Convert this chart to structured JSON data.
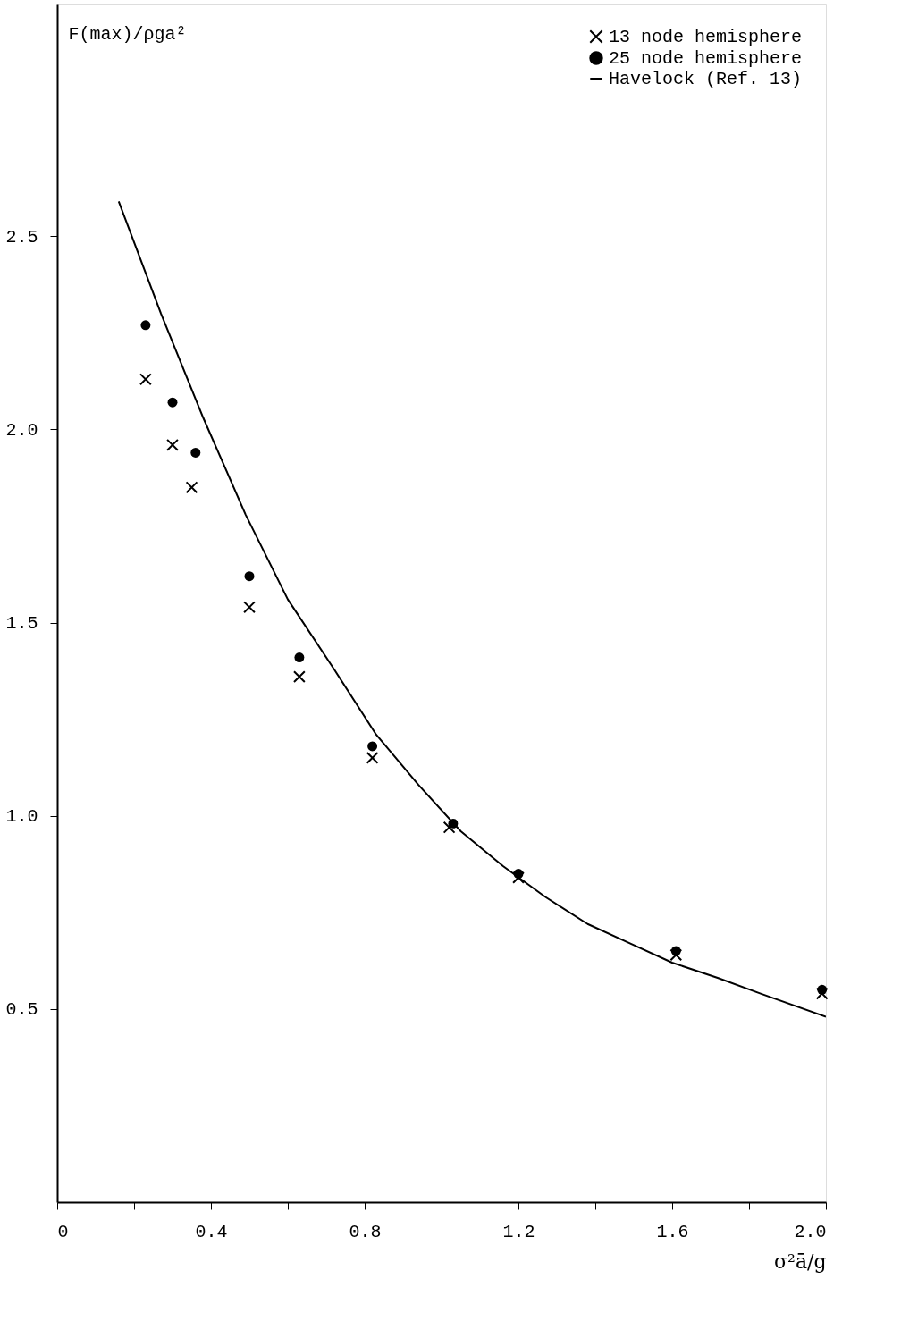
{
  "chart_data": {
    "type": "scatter",
    "xlabel": "σ²ā/g",
    "ylabel": "F(max)/ρga²",
    "xlim": [
      0,
      2.0
    ],
    "ylim": [
      0,
      3.1
    ],
    "xticks": [
      0,
      {
        "value": 0.2,
        "label": null
      },
      0.4,
      {
        "value": 0.6,
        "label": null
      },
      0.8,
      {
        "value": 1.0,
        "label": null
      },
      1.2,
      {
        "value": 1.4,
        "label": null
      },
      1.6,
      {
        "value": 1.8,
        "label": null
      },
      {
        "value": 2.0,
        "label": "2.0"
      }
    ],
    "yticks": [
      0.5,
      {
        "value": 1.0,
        "label": "1.0"
      },
      1.5,
      {
        "value": 2.0,
        "label": "2.0"
      },
      2.5
    ],
    "grid": false,
    "legend": "top right",
    "series": [
      {
        "name": "13 node hemisphere",
        "marker": "cross",
        "color": "#000000",
        "x": [
          0.23,
          0.3,
          0.35,
          0.5,
          0.63,
          0.82,
          1.02,
          1.2,
          1.61,
          1.99
        ],
        "values": [
          2.13,
          1.96,
          1.85,
          1.54,
          1.36,
          1.15,
          0.97,
          0.84,
          0.64,
          0.54
        ]
      },
      {
        "name": "25 node hemisphere",
        "marker": "circle",
        "color": "#000000",
        "x": [
          0.23,
          0.3,
          0.36,
          0.5,
          0.63,
          0.82,
          1.03,
          1.2,
          1.61,
          1.99
        ],
        "values": [
          2.27,
          2.07,
          1.94,
          1.62,
          1.41,
          1.18,
          0.98,
          0.85,
          0.65,
          0.55
        ]
      },
      {
        "name": "Havelock (Ref. 13)",
        "type": "line",
        "line_style": "solid",
        "color": "#000000",
        "x": [
          0.16,
          0.27,
          0.38,
          0.49,
          0.6,
          0.72,
          0.83,
          0.94,
          1.05,
          1.16,
          1.27,
          1.38,
          1.49,
          1.6,
          1.72,
          1.83,
          2.0
        ],
        "values": [
          2.59,
          2.3,
          2.03,
          1.78,
          1.56,
          1.38,
          1.21,
          1.08,
          0.96,
          0.87,
          0.79,
          0.72,
          0.67,
          0.62,
          0.58,
          0.54,
          0.48
        ]
      }
    ]
  }
}
